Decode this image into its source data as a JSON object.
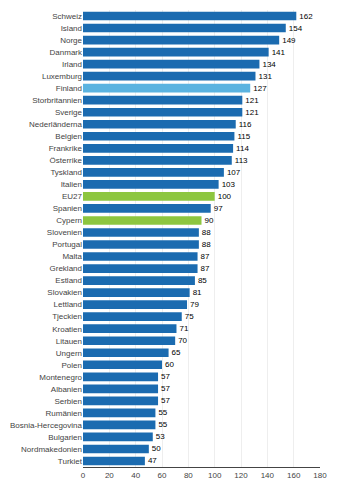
{
  "chart_data": {
    "type": "bar",
    "orientation": "horizontal",
    "categories": [
      "Schweiz",
      "Island",
      "Norge",
      "Danmark",
      "Irland",
      "Luxemburg",
      "Finland",
      "Storbritannien",
      "Sverige",
      "Nederländerna",
      "Belgien",
      "Frankrike",
      "Österrike",
      "Tyskland",
      "Italien",
      "EU27",
      "Spanien",
      "Cypern",
      "Slovenien",
      "Portugal",
      "Malta",
      "Grekland",
      "Estland",
      "Slovakien",
      "Lettland",
      "Tjeckien",
      "Kroatien",
      "Litauen",
      "Ungern",
      "Polen",
      "Montenegro",
      "Albanien",
      "Serbien",
      "Rumänien",
      "Bosnia-Hercegovina",
      "Bulgarien",
      "Nordmakedonien",
      "Turkiet"
    ],
    "values": [
      162,
      154,
      149,
      141,
      134,
      131,
      127,
      121,
      121,
      116,
      115,
      114,
      113,
      107,
      103,
      100,
      97,
      90,
      88,
      88,
      87,
      87,
      85,
      81,
      79,
      75,
      71,
      70,
      65,
      60,
      57,
      57,
      57,
      55,
      55,
      53,
      50,
      47
    ],
    "colors": [
      "#1B6BB0",
      "#1B6BB0",
      "#1B6BB0",
      "#1B6BB0",
      "#1B6BB0",
      "#1B6BB0",
      "#5BB3E0",
      "#1B6BB0",
      "#1B6BB0",
      "#1B6BB0",
      "#1B6BB0",
      "#1B6BB0",
      "#1B6BB0",
      "#1B6BB0",
      "#1B6BB0",
      "#8DC63F",
      "#1B6BB0",
      "#8DC63F",
      "#1B6BB0",
      "#1B6BB0",
      "#1B6BB0",
      "#1B6BB0",
      "#1B6BB0",
      "#1B6BB0",
      "#1B6BB0",
      "#1B6BB0",
      "#1B6BB0",
      "#1B6BB0",
      "#1B6BB0",
      "#1B6BB0",
      "#1B6BB0",
      "#1B6BB0",
      "#1B6BB0",
      "#1B6BB0",
      "#1B6BB0",
      "#1B6BB0",
      "#1B6BB0",
      "#1B6BB0"
    ],
    "xlim": [
      0,
      180
    ],
    "xticks": [
      0,
      20,
      40,
      60,
      80,
      100,
      120,
      140,
      160,
      180
    ],
    "grid": true,
    "data_labels": true
  }
}
